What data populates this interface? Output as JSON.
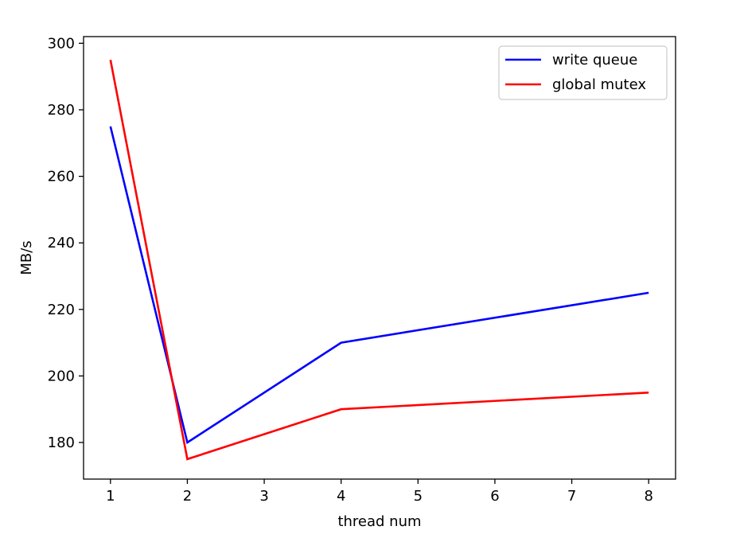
{
  "chart_data": {
    "type": "line",
    "title": "",
    "xlabel": "thread num",
    "ylabel": "MB/s",
    "xlim": [
      0.65,
      8.35
    ],
    "ylim": [
      169,
      302
    ],
    "xticks": [
      1,
      2,
      3,
      4,
      5,
      6,
      7,
      8
    ],
    "yticks": [
      180,
      200,
      220,
      240,
      260,
      280,
      300
    ],
    "grid": false,
    "legend": "top-right",
    "series": [
      {
        "name": "write queue",
        "color": "#0000ff",
        "x": [
          1,
          2,
          4,
          8
        ],
        "y": [
          275,
          180,
          210,
          225
        ]
      },
      {
        "name": "global mutex",
        "color": "#ff0000",
        "x": [
          1,
          2,
          4,
          8
        ],
        "y": [
          295,
          175,
          190,
          195
        ]
      }
    ]
  }
}
